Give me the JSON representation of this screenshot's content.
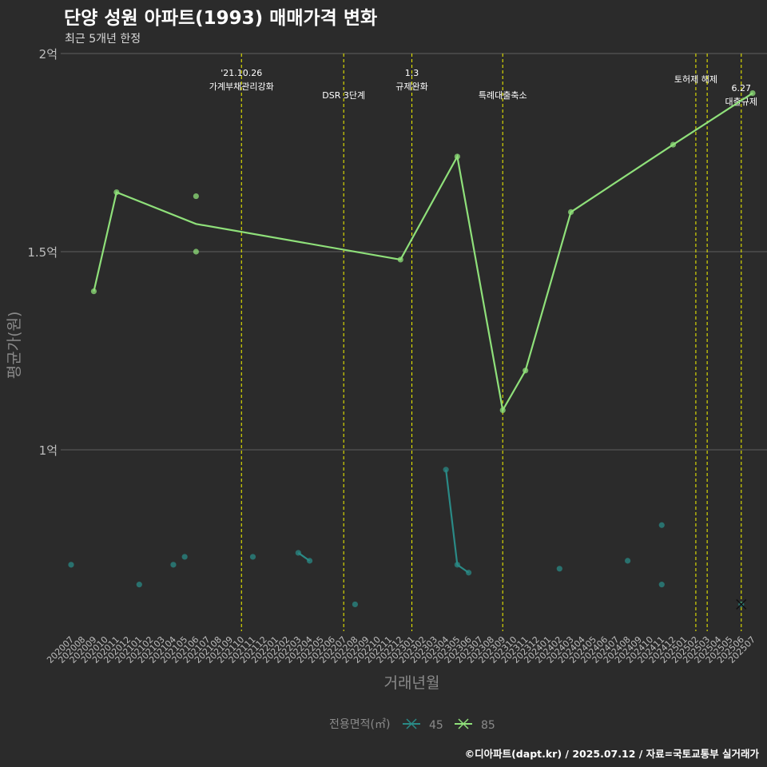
{
  "colors": {
    "background": "#2b2b2b",
    "grid": "#555555",
    "axis_text": "#bdbdbd",
    "title": "#ffffff",
    "subtitle": "#d9d9d9",
    "event_line": "#e5e500",
    "series_45": "#2a8a86",
    "series_85": "#8fe07a"
  },
  "chart_data": {
    "type": "line",
    "title": "단양 성원 아파트(1993) 매매가격 변화",
    "subtitle": "최근 5개년 한정",
    "xlabel": "거래년월",
    "ylabel": "평균가(원)",
    "ylim": [
      0.55,
      2.0
    ],
    "y_ticks": [
      {
        "value": 1.0,
        "label": "1억"
      },
      {
        "value": 1.5,
        "label": "1.5억"
      },
      {
        "value": 2.0,
        "label": "2억"
      }
    ],
    "categories": [
      "202007",
      "202008",
      "202009",
      "202010",
      "202011",
      "202012",
      "202101",
      "202102",
      "202103",
      "202104",
      "202105",
      "202106",
      "202107",
      "202108",
      "202109",
      "202110",
      "202111",
      "202112",
      "202201",
      "202202",
      "202203",
      "202204",
      "202205",
      "202206",
      "202207",
      "202208",
      "202209",
      "202210",
      "202211",
      "202212",
      "202301",
      "202302",
      "202303",
      "202304",
      "202305",
      "202306",
      "202307",
      "202308",
      "202309",
      "202310",
      "202311",
      "202312",
      "202401",
      "202402",
      "202403",
      "202404",
      "202405",
      "202406",
      "202407",
      "202408",
      "202409",
      "202410",
      "202411",
      "202412",
      "202501",
      "202502",
      "202503",
      "202504",
      "202505",
      "202506",
      "202507"
    ],
    "legend": {
      "title": "전용면적(㎡)",
      "entries": [
        "45",
        "85"
      ]
    },
    "series": [
      {
        "name": "45",
        "color": "#2a8a86",
        "points": [
          {
            "month": "202007",
            "value": 0.71
          },
          {
            "month": "202101",
            "value": 0.66
          },
          {
            "month": "202104",
            "value": 0.71
          },
          {
            "month": "202105",
            "value": 0.73
          },
          {
            "month": "202111",
            "value": 0.73
          },
          {
            "month": "202203",
            "value": 0.74
          },
          {
            "month": "202204",
            "value": 0.72
          },
          {
            "month": "202208",
            "value": 0.61
          },
          {
            "month": "202304",
            "value": 0.95
          },
          {
            "month": "202305",
            "value": 0.71
          },
          {
            "month": "202306",
            "value": 0.69
          },
          {
            "month": "202402",
            "value": 0.7
          },
          {
            "month": "202408",
            "value": 0.72
          },
          {
            "month": "202411",
            "value": 0.81
          },
          {
            "month": "202411",
            "value": 0.66
          },
          {
            "month": "202506",
            "value": 0.61
          }
        ],
        "line": [
          {
            "month": "202203",
            "value": 0.74
          },
          {
            "month": "202204",
            "value": 0.72
          },
          {
            "month": "202304",
            "value": 0.95
          },
          {
            "month": "202305",
            "value": 0.71
          },
          {
            "month": "202306",
            "value": 0.69
          }
        ],
        "marker": {
          "month": "202506",
          "value": 0.61
        }
      },
      {
        "name": "85",
        "color": "#8fe07a",
        "points": [
          {
            "month": "202009",
            "value": 1.4
          },
          {
            "month": "202011",
            "value": 1.65
          },
          {
            "month": "202106",
            "value": 1.64
          },
          {
            "month": "202106",
            "value": 1.5
          },
          {
            "month": "202212",
            "value": 1.48
          },
          {
            "month": "202305",
            "value": 1.74
          },
          {
            "month": "202309",
            "value": 1.1
          },
          {
            "month": "202311",
            "value": 1.2
          },
          {
            "month": "202403",
            "value": 1.6
          },
          {
            "month": "202412",
            "value": 1.77
          },
          {
            "month": "202507",
            "value": 1.9
          }
        ],
        "line": [
          {
            "month": "202009",
            "value": 1.4
          },
          {
            "month": "202011",
            "value": 1.65
          },
          {
            "month": "202106",
            "value": 1.57
          },
          {
            "month": "202212",
            "value": 1.48
          },
          {
            "month": "202305",
            "value": 1.74
          },
          {
            "month": "202309",
            "value": 1.1
          },
          {
            "month": "202311",
            "value": 1.2
          },
          {
            "month": "202403",
            "value": 1.6
          },
          {
            "month": "202412",
            "value": 1.77
          },
          {
            "month": "202507",
            "value": 1.9
          }
        ]
      }
    ],
    "events": [
      {
        "month": "202110",
        "lines": [
          "'21.10.26",
          "가계부채관리강화"
        ],
        "row": 0
      },
      {
        "month": "202207",
        "lines": [
          "DSR 3단계"
        ],
        "row": 1
      },
      {
        "month": "202301",
        "lines": [
          "1.3",
          "규제완화"
        ],
        "row": 0
      },
      {
        "month": "202309",
        "lines": [
          "특례대출축소"
        ],
        "row": 1
      },
      {
        "month": "202502",
        "lines": [
          "토허제 해제"
        ],
        "row": 0
      },
      {
        "month": "202503",
        "lines": [],
        "row": 0
      },
      {
        "month": "202506",
        "lines": [
          "6.27",
          "대출규제"
        ],
        "row": 0
      }
    ]
  },
  "footer": {
    "credit": "©디아파트(dapt.kr) / 2025.07.12 / 자료=국토교통부 실거래가"
  }
}
